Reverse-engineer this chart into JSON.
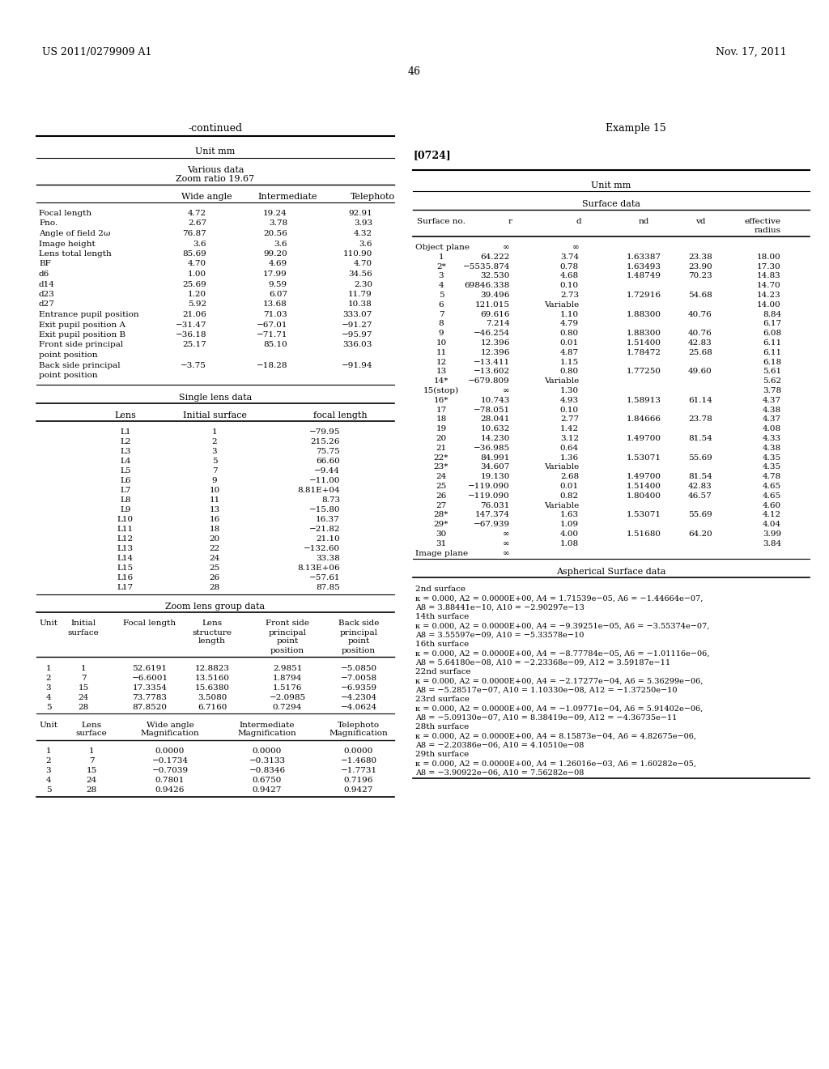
{
  "page_header_left": "US 2011/0279909 A1",
  "page_header_right": "Nov. 17, 2011",
  "page_number": "46",
  "left_title": "-continued",
  "left_unit": "Unit mm",
  "various_data_title1": "Various data",
  "various_data_title2": "Zoom ratio 19.67",
  "various_data_rows": [
    [
      "Focal length",
      "4.72",
      "19.24",
      "92.91"
    ],
    [
      "Fno.",
      "2.67",
      "3.78",
      "3.93"
    ],
    [
      "Angle of field 2ω",
      "76.87",
      "20.56",
      "4.32"
    ],
    [
      "Image height",
      "3.6",
      "3.6",
      "3.6"
    ],
    [
      "Lens total length",
      "85.69",
      "99.20",
      "110.90"
    ],
    [
      "BF",
      "4.70",
      "4.69",
      "4.70"
    ],
    [
      "d6",
      "1.00",
      "17.99",
      "34.56"
    ],
    [
      "d14",
      "25.69",
      "9.59",
      "2.30"
    ],
    [
      "d23",
      "1.20",
      "6.07",
      "11.79"
    ],
    [
      "d27",
      "5.92",
      "13.68",
      "10.38"
    ],
    [
      "Entrance pupil position",
      "21.06",
      "71.03",
      "333.07"
    ],
    [
      "Exit pupil position A",
      "−31.47",
      "−67.01",
      "−91.27"
    ],
    [
      "Exit pupil position B",
      "−36.18",
      "−71.71",
      "−95.97"
    ],
    [
      "Front side principal",
      "25.17",
      "85.10",
      "336.03"
    ],
    [
      "point position",
      "",
      "",
      ""
    ],
    [
      "Back side principal",
      "−3.75",
      "−18.28",
      "−91.94"
    ],
    [
      "point position",
      "",
      "",
      ""
    ]
  ],
  "single_lens_rows": [
    [
      "L1",
      "1",
      "−79.95"
    ],
    [
      "L2",
      "2",
      "215.26"
    ],
    [
      "L3",
      "3",
      "75.75"
    ],
    [
      "L4",
      "5",
      "66.60"
    ],
    [
      "L5",
      "7",
      "−9.44"
    ],
    [
      "L6",
      "9",
      "−11.00"
    ],
    [
      "L7",
      "10",
      "8.81E+04"
    ],
    [
      "L8",
      "11",
      "8.73"
    ],
    [
      "L9",
      "13",
      "−15.80"
    ],
    [
      "L10",
      "16",
      "16.37"
    ],
    [
      "L11",
      "18",
      "−21.82"
    ],
    [
      "L12",
      "20",
      "21.10"
    ],
    [
      "L13",
      "22",
      "−132.60"
    ],
    [
      "L14",
      "24",
      "33.38"
    ],
    [
      "L15",
      "25",
      "8.13E+06"
    ],
    [
      "L16",
      "26",
      "−57.61"
    ],
    [
      "L17",
      "28",
      "87.85"
    ]
  ],
  "zoom_lens_rows": [
    [
      "1",
      "1",
      "52.6191",
      "12.8823",
      "2.9851",
      "−5.0850"
    ],
    [
      "2",
      "7",
      "−6.6001",
      "13.5160",
      "1.8794",
      "−7.0058"
    ],
    [
      "3",
      "15",
      "17.3354",
      "15.6380",
      "1.5176",
      "−6.9359"
    ],
    [
      "4",
      "24",
      "73.7783",
      "3.5080",
      "−2.0985",
      "−4.2304"
    ],
    [
      "5",
      "28",
      "87.8520",
      "6.7160",
      "0.7294",
      "−4.0624"
    ]
  ],
  "magnif_rows": [
    [
      "1",
      "1",
      "0.0000",
      "0.0000",
      "0.0000"
    ],
    [
      "2",
      "7",
      "−0.1734",
      "−0.3133",
      "−1.4680"
    ],
    [
      "3",
      "15",
      "−0.7039",
      "−0.8346",
      "−1.7731"
    ],
    [
      "4",
      "24",
      "0.7801",
      "0.6750",
      "0.7196"
    ],
    [
      "5",
      "28",
      "0.9426",
      "0.9427",
      "0.9427"
    ]
  ],
  "right_title": "Example 15",
  "right_tag": "[0724]",
  "right_unit": "Unit mm",
  "surface_rows": [
    [
      "Object plane",
      "∞",
      "∞",
      "",
      "",
      ""
    ],
    [
      "1",
      "64.222",
      "3.74",
      "1.63387",
      "23.38",
      "18.00"
    ],
    [
      "2*",
      "−5535.874",
      "0.78",
      "1.63493",
      "23.90",
      "17.30"
    ],
    [
      "3",
      "32.530",
      "4.68",
      "1.48749",
      "70.23",
      "14.83"
    ],
    [
      "4",
      "69846.338",
      "0.10",
      "",
      "",
      "14.70"
    ],
    [
      "5",
      "39.496",
      "2.73",
      "1.72916",
      "54.68",
      "14.23"
    ],
    [
      "6",
      "121.015",
      "Variable",
      "",
      "",
      "14.00"
    ],
    [
      "7",
      "69.616",
      "1.10",
      "1.88300",
      "40.76",
      "8.84"
    ],
    [
      "8",
      "7.214",
      "4.79",
      "",
      "",
      "6.17"
    ],
    [
      "9",
      "−46.254",
      "0.80",
      "1.88300",
      "40.76",
      "6.08"
    ],
    [
      "10",
      "12.396",
      "0.01",
      "1.51400",
      "42.83",
      "6.11"
    ],
    [
      "11",
      "12.396",
      "4.87",
      "1.78472",
      "25.68",
      "6.11"
    ],
    [
      "12",
      "−13.411",
      "1.15",
      "",
      "",
      "6.18"
    ],
    [
      "13",
      "−13.602",
      "0.80",
      "1.77250",
      "49.60",
      "5.61"
    ],
    [
      "14*",
      "−679.809",
      "Variable",
      "",
      "",
      "5.62"
    ],
    [
      "15(stop)",
      "∞",
      "1.30",
      "",
      "",
      "3.78"
    ],
    [
      "16*",
      "10.743",
      "4.93",
      "1.58913",
      "61.14",
      "4.37"
    ],
    [
      "17",
      "−78.051",
      "0.10",
      "",
      "",
      "4.38"
    ],
    [
      "18",
      "28.041",
      "2.77",
      "1.84666",
      "23.78",
      "4.37"
    ],
    [
      "19",
      "10.632",
      "1.42",
      "",
      "",
      "4.08"
    ],
    [
      "20",
      "14.230",
      "3.12",
      "1.49700",
      "81.54",
      "4.33"
    ],
    [
      "21",
      "−36.985",
      "0.64",
      "",
      "",
      "4.38"
    ],
    [
      "22*",
      "84.991",
      "1.36",
      "1.53071",
      "55.69",
      "4.35"
    ],
    [
      "23*",
      "34.607",
      "Variable",
      "",
      "",
      "4.35"
    ],
    [
      "24",
      "19.130",
      "2.68",
      "1.49700",
      "81.54",
      "4.78"
    ],
    [
      "25",
      "−119.090",
      "0.01",
      "1.51400",
      "42.83",
      "4.65"
    ],
    [
      "26",
      "−119.090",
      "0.82",
      "1.80400",
      "46.57",
      "4.65"
    ],
    [
      "27",
      "76.031",
      "Variable",
      "",
      "",
      "4.60"
    ],
    [
      "28*",
      "147.374",
      "1.63",
      "1.53071",
      "55.69",
      "4.12"
    ],
    [
      "29*",
      "−67.939",
      "1.09",
      "",
      "",
      "4.04"
    ],
    [
      "30",
      "∞",
      "4.00",
      "1.51680",
      "64.20",
      "3.99"
    ],
    [
      "31",
      "∞",
      "1.08",
      "",
      "",
      "3.84"
    ],
    [
      "Image plane",
      "∞",
      "",
      "",
      "",
      ""
    ]
  ],
  "aspherical_sections": [
    {
      "header": "2nd surface",
      "line1": "κ = 0.000, A2 = 0.0000E+00, A4 = 1.71539e−05, A6 = −1.44664e−07,",
      "line2": "A8 = 3.88441e−10, A10 = −2.90297e−13"
    },
    {
      "header": "14th surface",
      "line1": "κ = 0.000, A2 = 0.0000E+00, A4 = −9.39251e−05, A6 = −3.55374e−07,",
      "line2": "A8 = 3.55597e−09, A10 = −5.33578e−10"
    },
    {
      "header": "16th surface",
      "line1": "κ = 0.000, A2 = 0.0000E+00, A4 = −8.77784e−05, A6 = −1.01116e−06,",
      "line2": "A8 = 5.64180e−08, A10 = −2.23368e−09, A12 = 3.59187e−11"
    },
    {
      "header": "22nd surface",
      "line1": "κ = 0.000, A2 = 0.0000E+00, A4 = −2.17277e−04, A6 = 5.36299e−06,",
      "line2": "A8 = −5.28517e−07, A10 = 1.10330e−08, A12 = −1.37250e−10"
    },
    {
      "header": "23rd surface",
      "line1": "κ = 0.000, A2 = 0.0000E+00, A4 = −1.09771e−04, A6 = 5.91402e−06,",
      "line2": "A8 = −5.09130e−07, A10 = 8.38419e−09, A12 = −4.36735e−11"
    },
    {
      "header": "28th surface",
      "line1": "κ = 0.000, A2 = 0.0000E+00, A4 = 8.15873e−04, A6 = 4.82675e−06,",
      "line2": "A8 = −2.20386e−06, A10 = 4.10510e−08"
    },
    {
      "header": "29th surface",
      "line1": "κ = 0.000, A2 = 0.0000E+00, A4 = 1.26016e−03, A6 = 1.60282e−05,",
      "line2": "A8 = −3.90922e−06, A10 = 7.56282e−08"
    }
  ]
}
